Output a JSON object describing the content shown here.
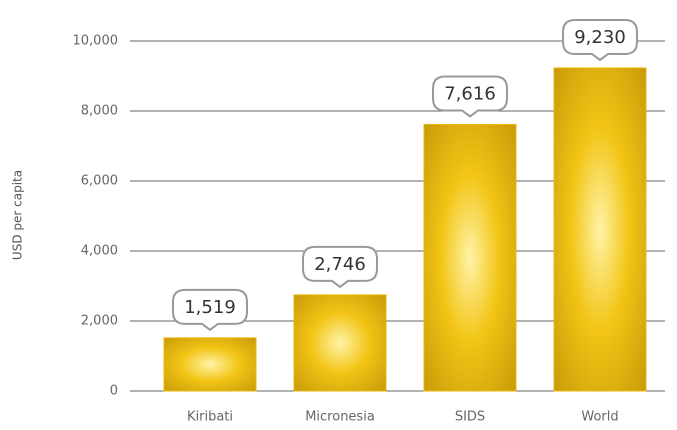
{
  "chart_data": {
    "type": "bar",
    "y_label": "USD per capita",
    "categories": [
      "Kiribati",
      "Micronesia",
      "SIDS",
      "World"
    ],
    "values": [
      1519,
      2746,
      7616,
      9230
    ],
    "value_labels": [
      "1,519",
      "2,746",
      "7,616",
      "9,230"
    ],
    "color": "#e9b80c",
    "ylim": [
      0,
      10000
    ],
    "yticks": [
      0,
      {
        "value": 2000,
        "label": "2,000"
      },
      {
        "value": 4000,
        "label": "4,000"
      },
      {
        "value": 6000,
        "label": "6,000"
      },
      {
        "value": 8000,
        "label": "8,000"
      },
      {
        "value": 10000,
        "label": "10,000"
      }
    ],
    "grid": true
  }
}
